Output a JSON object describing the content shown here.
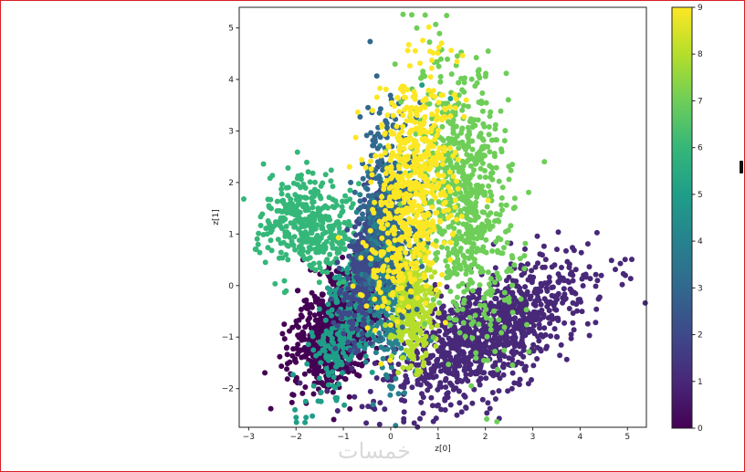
{
  "chart_data": {
    "type": "scatter",
    "xlabel": "z[0]",
    "ylabel": "z[1]",
    "xlim": [
      -3.2,
      5.4
    ],
    "ylim": [
      -2.75,
      5.4
    ],
    "x_ticks": [
      -3,
      -2,
      -1,
      0,
      1,
      2,
      3,
      4,
      5
    ],
    "y_ticks": [
      -2,
      -1,
      0,
      1,
      2,
      3,
      4,
      5
    ],
    "colorbar": {
      "min": 0,
      "max": 9,
      "ticks": [
        0,
        1,
        2,
        3,
        4,
        5,
        6,
        7,
        8,
        9
      ],
      "colormap": "viridis"
    },
    "clusters": [
      {
        "label": 0,
        "color": "#440154",
        "center": [
          -1.1,
          -0.8
        ],
        "spread": [
          0.38,
          0.62
        ],
        "tilt": -0.55,
        "count": 950
      },
      {
        "label": 1,
        "color": "#482878",
        "center": [
          2.0,
          -0.95
        ],
        "spread": [
          1.15,
          0.5
        ],
        "tilt": 0.5,
        "count": 1050
      },
      {
        "label": 2,
        "color": "#3e4989",
        "center": [
          -0.5,
          0.45
        ],
        "spread": [
          0.22,
          0.75
        ],
        "tilt": -0.2,
        "count": 350
      },
      {
        "label": 3,
        "color": "#31688e",
        "center": [
          0.0,
          1.7
        ],
        "spread": [
          0.35,
          1.0
        ],
        "tilt": 0.0,
        "count": 300
      },
      {
        "label": 4,
        "color": "#26828e",
        "center": [
          -0.1,
          -0.2
        ],
        "spread": [
          0.2,
          1.05
        ],
        "tilt": 0.1,
        "count": 260
      },
      {
        "label": 5,
        "color": "#1f9e89",
        "center": [
          -0.7,
          -0.2
        ],
        "spread": [
          0.28,
          1.2
        ],
        "tilt": -0.45,
        "count": 420
      },
      {
        "label": 6,
        "color": "#35b779",
        "center": [
          -1.7,
          1.2
        ],
        "spread": [
          0.5,
          0.45
        ],
        "tilt": -0.6,
        "count": 380
      },
      {
        "label": 7,
        "color": "#6ece58",
        "center": [
          1.55,
          1.7
        ],
        "spread": [
          0.5,
          1.3
        ],
        "tilt": 0.15,
        "count": 720
      },
      {
        "label": 8,
        "color": "#b5de2b",
        "center": [
          0.45,
          -0.4
        ],
        "spread": [
          0.22,
          0.55
        ],
        "tilt": 0.0,
        "count": 320
      },
      {
        "label": 9,
        "color": "#fde725",
        "center": [
          0.45,
          1.8
        ],
        "spread": [
          0.45,
          1.15
        ],
        "tilt": -0.15,
        "count": 620
      }
    ]
  },
  "watermark": "خمسات"
}
